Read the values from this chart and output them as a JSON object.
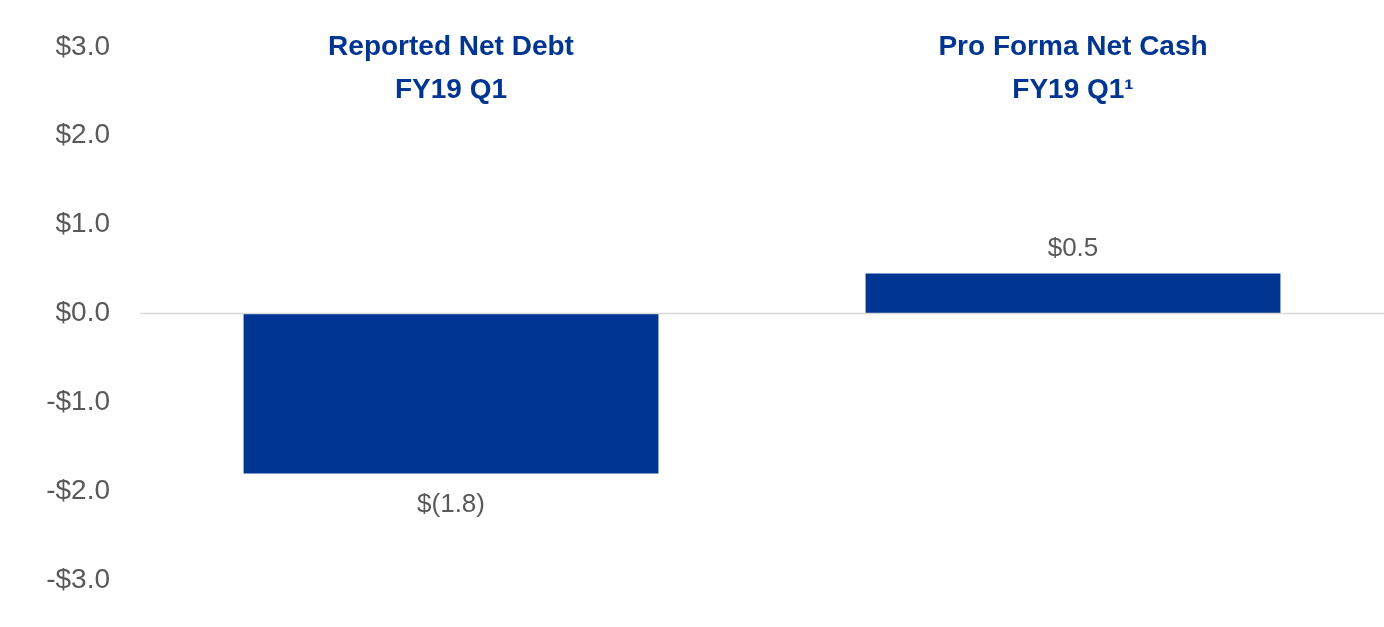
{
  "chart_data": {
    "type": "bar",
    "categories": [
      "Reported Net Debt\nFY19 Q1",
      "Pro Forma Net Cash\nFY19 Q1¹"
    ],
    "values": [
      -1.8,
      0.45
    ],
    "color": "#003591",
    "value_labels": [
      "$(1.8)",
      "$0.5"
    ],
    "ylim": [
      -3,
      3
    ],
    "yticks": [
      {
        "value": 3,
        "label": "$3.0"
      },
      {
        "value": 2,
        "label": "$2.0"
      },
      {
        "value": 1,
        "label": "$1.0"
      },
      {
        "value": 0,
        "label": "$0.0"
      },
      {
        "value": -1,
        "label": "-$1.0"
      },
      {
        "value": -2,
        "label": "-$2.0"
      },
      {
        "value": -3,
        "label": "-$3.0"
      }
    ],
    "ref_lines": [
      {
        "axis": "y",
        "value": 0,
        "color": "#d9d9d9"
      }
    ],
    "grid": false,
    "legend": false
  }
}
